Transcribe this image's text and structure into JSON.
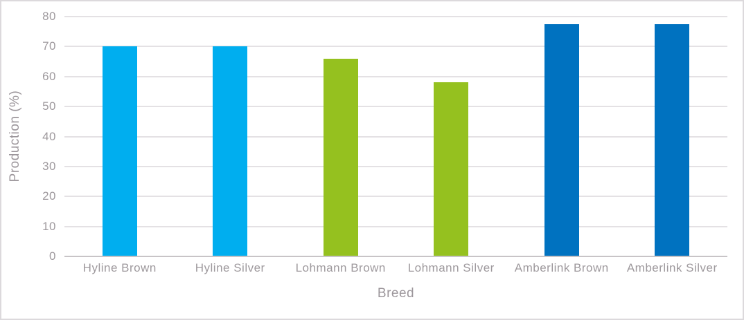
{
  "chart_data": {
    "type": "bar",
    "title": "",
    "categories": [
      "Hyline Brown",
      "Hyline Silver",
      "Lohmann Brown",
      "Lohmann Silver",
      "Amberlink Brown",
      "Amberlink Silver"
    ],
    "values": [
      70,
      70,
      66,
      58,
      77.5,
      77.5
    ],
    "bar_colors": [
      "#00AEEF",
      "#00AEEF",
      "#95C11F",
      "#95C11F",
      "#0072C0",
      "#0072C0"
    ],
    "xlabel": "Breed",
    "ylabel": "Production (%)",
    "ylim": [
      0,
      80
    ],
    "yticks": [
      0,
      10,
      20,
      30,
      40,
      50,
      60,
      70,
      80
    ],
    "grid": true,
    "legend": false
  },
  "colors": {
    "gridline": "#e4e1e4",
    "axis_line": "#c8c4c7",
    "label_text": "#9e999d",
    "frame_border": "#dcd9dc",
    "background": "#ffffff"
  }
}
